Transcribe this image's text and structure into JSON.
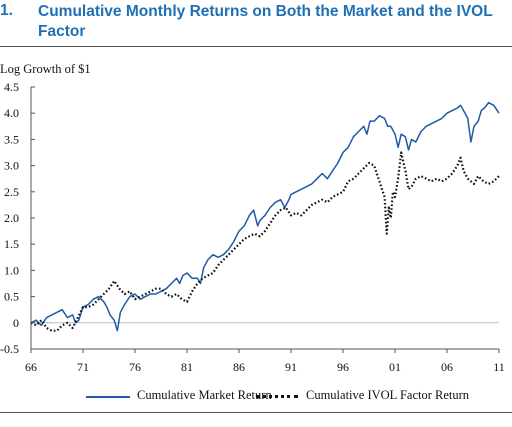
{
  "figure": {
    "number": "1.",
    "title_line1": "Cumulative Monthly Returns on Both the Market and the IVOL",
    "title_line2": "Factor",
    "ylabel": "Log Growth of $1"
  },
  "colors": {
    "title": "#1f6fb5",
    "market": "#1f5aa8",
    "ivol": "#111111"
  },
  "chart_data": {
    "type": "line",
    "title": "Cumulative Monthly Returns on Both the Market and the IVOL Factor",
    "xlabel": "",
    "ylabel": "Log Growth of $1",
    "xlim": [
      1966,
      2011
    ],
    "ylim": [
      -0.5,
      4.5
    ],
    "x_ticks": [
      1966,
      1971,
      1976,
      1981,
      1986,
      1991,
      1996,
      2001,
      2006,
      2011
    ],
    "x_tick_labels": [
      "66",
      "71",
      "76",
      "81",
      "86",
      "91",
      "96",
      "01",
      "06",
      "11"
    ],
    "y_ticks": [
      -0.5,
      0,
      0.5,
      1.0,
      1.5,
      2.0,
      2.5,
      3.0,
      3.5,
      4.0,
      4.5
    ],
    "y_tick_labels": [
      "-0.5",
      "0",
      "0.5",
      "1.0",
      "1.5",
      "2.0",
      "2.5",
      "3.0",
      "3.5",
      "4.0",
      "4.5"
    ],
    "grid": false,
    "zero_line": true,
    "legend": "bottom",
    "series": [
      {
        "name": "Cumulative Market Return",
        "style": "solid",
        "x": [
          1966,
          1966.5,
          1967,
          1967.5,
          1968,
          1968.5,
          1969,
          1969.5,
          1970,
          1970.3,
          1970.6,
          1971,
          1971.5,
          1972,
          1972.5,
          1973,
          1973.3,
          1973.6,
          1974,
          1974.3,
          1974.6,
          1975,
          1975.5,
          1976,
          1976.5,
          1977,
          1977.5,
          1978,
          1978.5,
          1979,
          1979.5,
          1980,
          1980.3,
          1980.6,
          1981,
          1981.5,
          1982,
          1982.3,
          1982.6,
          1983,
          1983.5,
          1984,
          1984.5,
          1985,
          1985.5,
          1986,
          1986.5,
          1987,
          1987.4,
          1987.8,
          1988,
          1988.5,
          1989,
          1989.5,
          1990,
          1990.4,
          1990.8,
          1991,
          1991.5,
          1992,
          1992.5,
          1993,
          1993.5,
          1994,
          1994.5,
          1995,
          1995.5,
          1996,
          1996.5,
          1997,
          1997.5,
          1998,
          1998.3,
          1998.6,
          1999,
          1999.5,
          2000,
          2000.3,
          2000.6,
          2001,
          2001.3,
          2001.6,
          2002,
          2002.3,
          2002.6,
          2003,
          2003.5,
          2004,
          2004.5,
          2005,
          2005.5,
          2006,
          2006.5,
          2007,
          2007.3,
          2007.6,
          2008,
          2008.3,
          2008.6,
          2009,
          2009.3,
          2009.6,
          2010,
          2010.5,
          2011
        ],
        "y": [
          0.0,
          0.05,
          -0.05,
          0.1,
          0.15,
          0.2,
          0.25,
          0.1,
          0.15,
          0.0,
          0.05,
          0.3,
          0.35,
          0.45,
          0.5,
          0.4,
          0.3,
          0.15,
          0.05,
          -0.15,
          0.2,
          0.35,
          0.5,
          0.55,
          0.45,
          0.5,
          0.55,
          0.55,
          0.6,
          0.65,
          0.75,
          0.85,
          0.75,
          0.9,
          0.95,
          0.85,
          0.85,
          0.75,
          1.05,
          1.2,
          1.3,
          1.25,
          1.3,
          1.4,
          1.55,
          1.75,
          1.85,
          2.05,
          2.15,
          1.85,
          1.95,
          2.05,
          2.2,
          2.3,
          2.35,
          2.2,
          2.35,
          2.45,
          2.5,
          2.55,
          2.6,
          2.65,
          2.75,
          2.85,
          2.75,
          2.9,
          3.05,
          3.25,
          3.35,
          3.55,
          3.65,
          3.75,
          3.6,
          3.85,
          3.85,
          3.95,
          3.9,
          3.75,
          3.75,
          3.6,
          3.35,
          3.6,
          3.55,
          3.3,
          3.5,
          3.45,
          3.65,
          3.75,
          3.8,
          3.85,
          3.9,
          4.0,
          4.05,
          4.1,
          4.15,
          4.05,
          3.9,
          3.45,
          3.75,
          3.85,
          4.05,
          4.1,
          4.2,
          4.15,
          4.0
        ]
      },
      {
        "name": "Cumulative IVOL Factor Return",
        "style": "dotted",
        "x": [
          1966,
          1966.5,
          1967,
          1967.5,
          1968,
          1968.5,
          1969,
          1969.5,
          1970,
          1970.5,
          1971,
          1971.5,
          1972,
          1972.5,
          1973,
          1973.5,
          1974,
          1974.5,
          1975,
          1975.5,
          1976,
          1976.5,
          1977,
          1977.5,
          1978,
          1978.5,
          1979,
          1979.5,
          1980,
          1980.5,
          1981,
          1981.5,
          1982,
          1982.5,
          1983,
          1983.5,
          1984,
          1984.5,
          1985,
          1985.5,
          1986,
          1986.5,
          1987,
          1987.5,
          1988,
          1988.5,
          1989,
          1989.5,
          1990,
          1990.5,
          1991,
          1991.5,
          1992,
          1992.5,
          1993,
          1993.5,
          1994,
          1994.5,
          1995,
          1995.5,
          1996,
          1996.5,
          1997,
          1997.5,
          1998,
          1998.5,
          1999,
          1999.5,
          2000,
          2000.2,
          2000.4,
          2000.6,
          2000.8,
          2001,
          2001.3,
          2001.6,
          2002,
          2002.3,
          2002.6,
          2003,
          2003.5,
          2004,
          2004.5,
          2005,
          2005.5,
          2006,
          2006.5,
          2007,
          2007.3,
          2007.6,
          2008,
          2008.3,
          2008.6,
          2009,
          2009.5,
          2010,
          2010.5,
          2011
        ],
        "y": [
          0.0,
          -0.05,
          0.05,
          -0.1,
          -0.15,
          -0.15,
          -0.05,
          0.0,
          -0.1,
          0.1,
          0.3,
          0.3,
          0.35,
          0.45,
          0.55,
          0.65,
          0.8,
          0.65,
          0.55,
          0.6,
          0.45,
          0.5,
          0.55,
          0.6,
          0.65,
          0.65,
          0.55,
          0.5,
          0.55,
          0.45,
          0.4,
          0.6,
          0.75,
          0.85,
          0.9,
          0.95,
          1.1,
          1.2,
          1.3,
          1.4,
          1.5,
          1.6,
          1.65,
          1.7,
          1.65,
          1.75,
          1.9,
          2.05,
          2.15,
          2.2,
          2.05,
          2.1,
          2.05,
          2.15,
          2.25,
          2.3,
          2.35,
          2.3,
          2.4,
          2.45,
          2.5,
          2.7,
          2.75,
          2.85,
          2.95,
          3.05,
          3.0,
          2.7,
          2.4,
          1.7,
          2.2,
          2.0,
          2.5,
          2.4,
          2.75,
          3.25,
          2.9,
          2.55,
          2.6,
          2.75,
          2.8,
          2.75,
          2.7,
          2.75,
          2.7,
          2.75,
          2.85,
          3.0,
          3.15,
          2.9,
          2.75,
          2.7,
          2.65,
          2.8,
          2.7,
          2.65,
          2.7,
          2.8
        ]
      }
    ]
  },
  "legend": {
    "market_label": "Cumulative Market Return",
    "ivol_label": "Cumulative IVOL Factor Return"
  }
}
